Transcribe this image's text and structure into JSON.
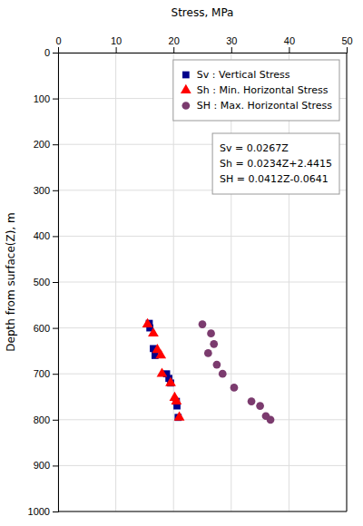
{
  "chart_data": {
    "type": "scatter",
    "x_label": "Stress, MPa",
    "y_label": "Depth from surface(Z), m",
    "xlim": [
      0,
      50
    ],
    "ylim": [
      1000,
      0
    ],
    "xticks": [
      0,
      10,
      20,
      30,
      40,
      50
    ],
    "yticks": [
      0,
      100,
      200,
      300,
      400,
      500,
      600,
      700,
      800,
      900,
      1000
    ],
    "grid": true,
    "legend": "upper right",
    "series": [
      {
        "name": "Sv : Vertical Stress",
        "color": "#00008B",
        "marker": "square",
        "x": [
          15.8,
          15.9,
          16.5,
          16.8,
          18.8,
          19.2,
          19.5,
          20.5,
          20.6,
          20.8
        ],
        "values": [
          590,
          600,
          645,
          660,
          700,
          710,
          720,
          760,
          770,
          795
        ]
      },
      {
        "name": "Sh : Min. Horizontal Stress",
        "color": "#FF0000",
        "marker": "triangle",
        "x": [
          15.5,
          16.5,
          17.2,
          17.8,
          18.0,
          19.5,
          20.2,
          20.5,
          21.0
        ],
        "values": [
          592,
          612,
          648,
          660,
          700,
          720,
          752,
          760,
          795
        ]
      },
      {
        "name": "SH : Max. Horizontal Stress",
        "color": "#7B3B6E",
        "marker": "circle",
        "x": [
          25.0,
          26.5,
          27.0,
          26.0,
          27.5,
          28.5,
          30.5,
          33.5,
          35.0,
          36.0,
          36.8
        ],
        "values": [
          592,
          612,
          635,
          655,
          680,
          700,
          730,
          760,
          770,
          792,
          800
        ]
      }
    ],
    "annotations": [
      "Sv = 0.0267Z",
      "Sh = 0.0234Z+2.4415",
      "SH = 0.0412Z-0.0641"
    ]
  }
}
